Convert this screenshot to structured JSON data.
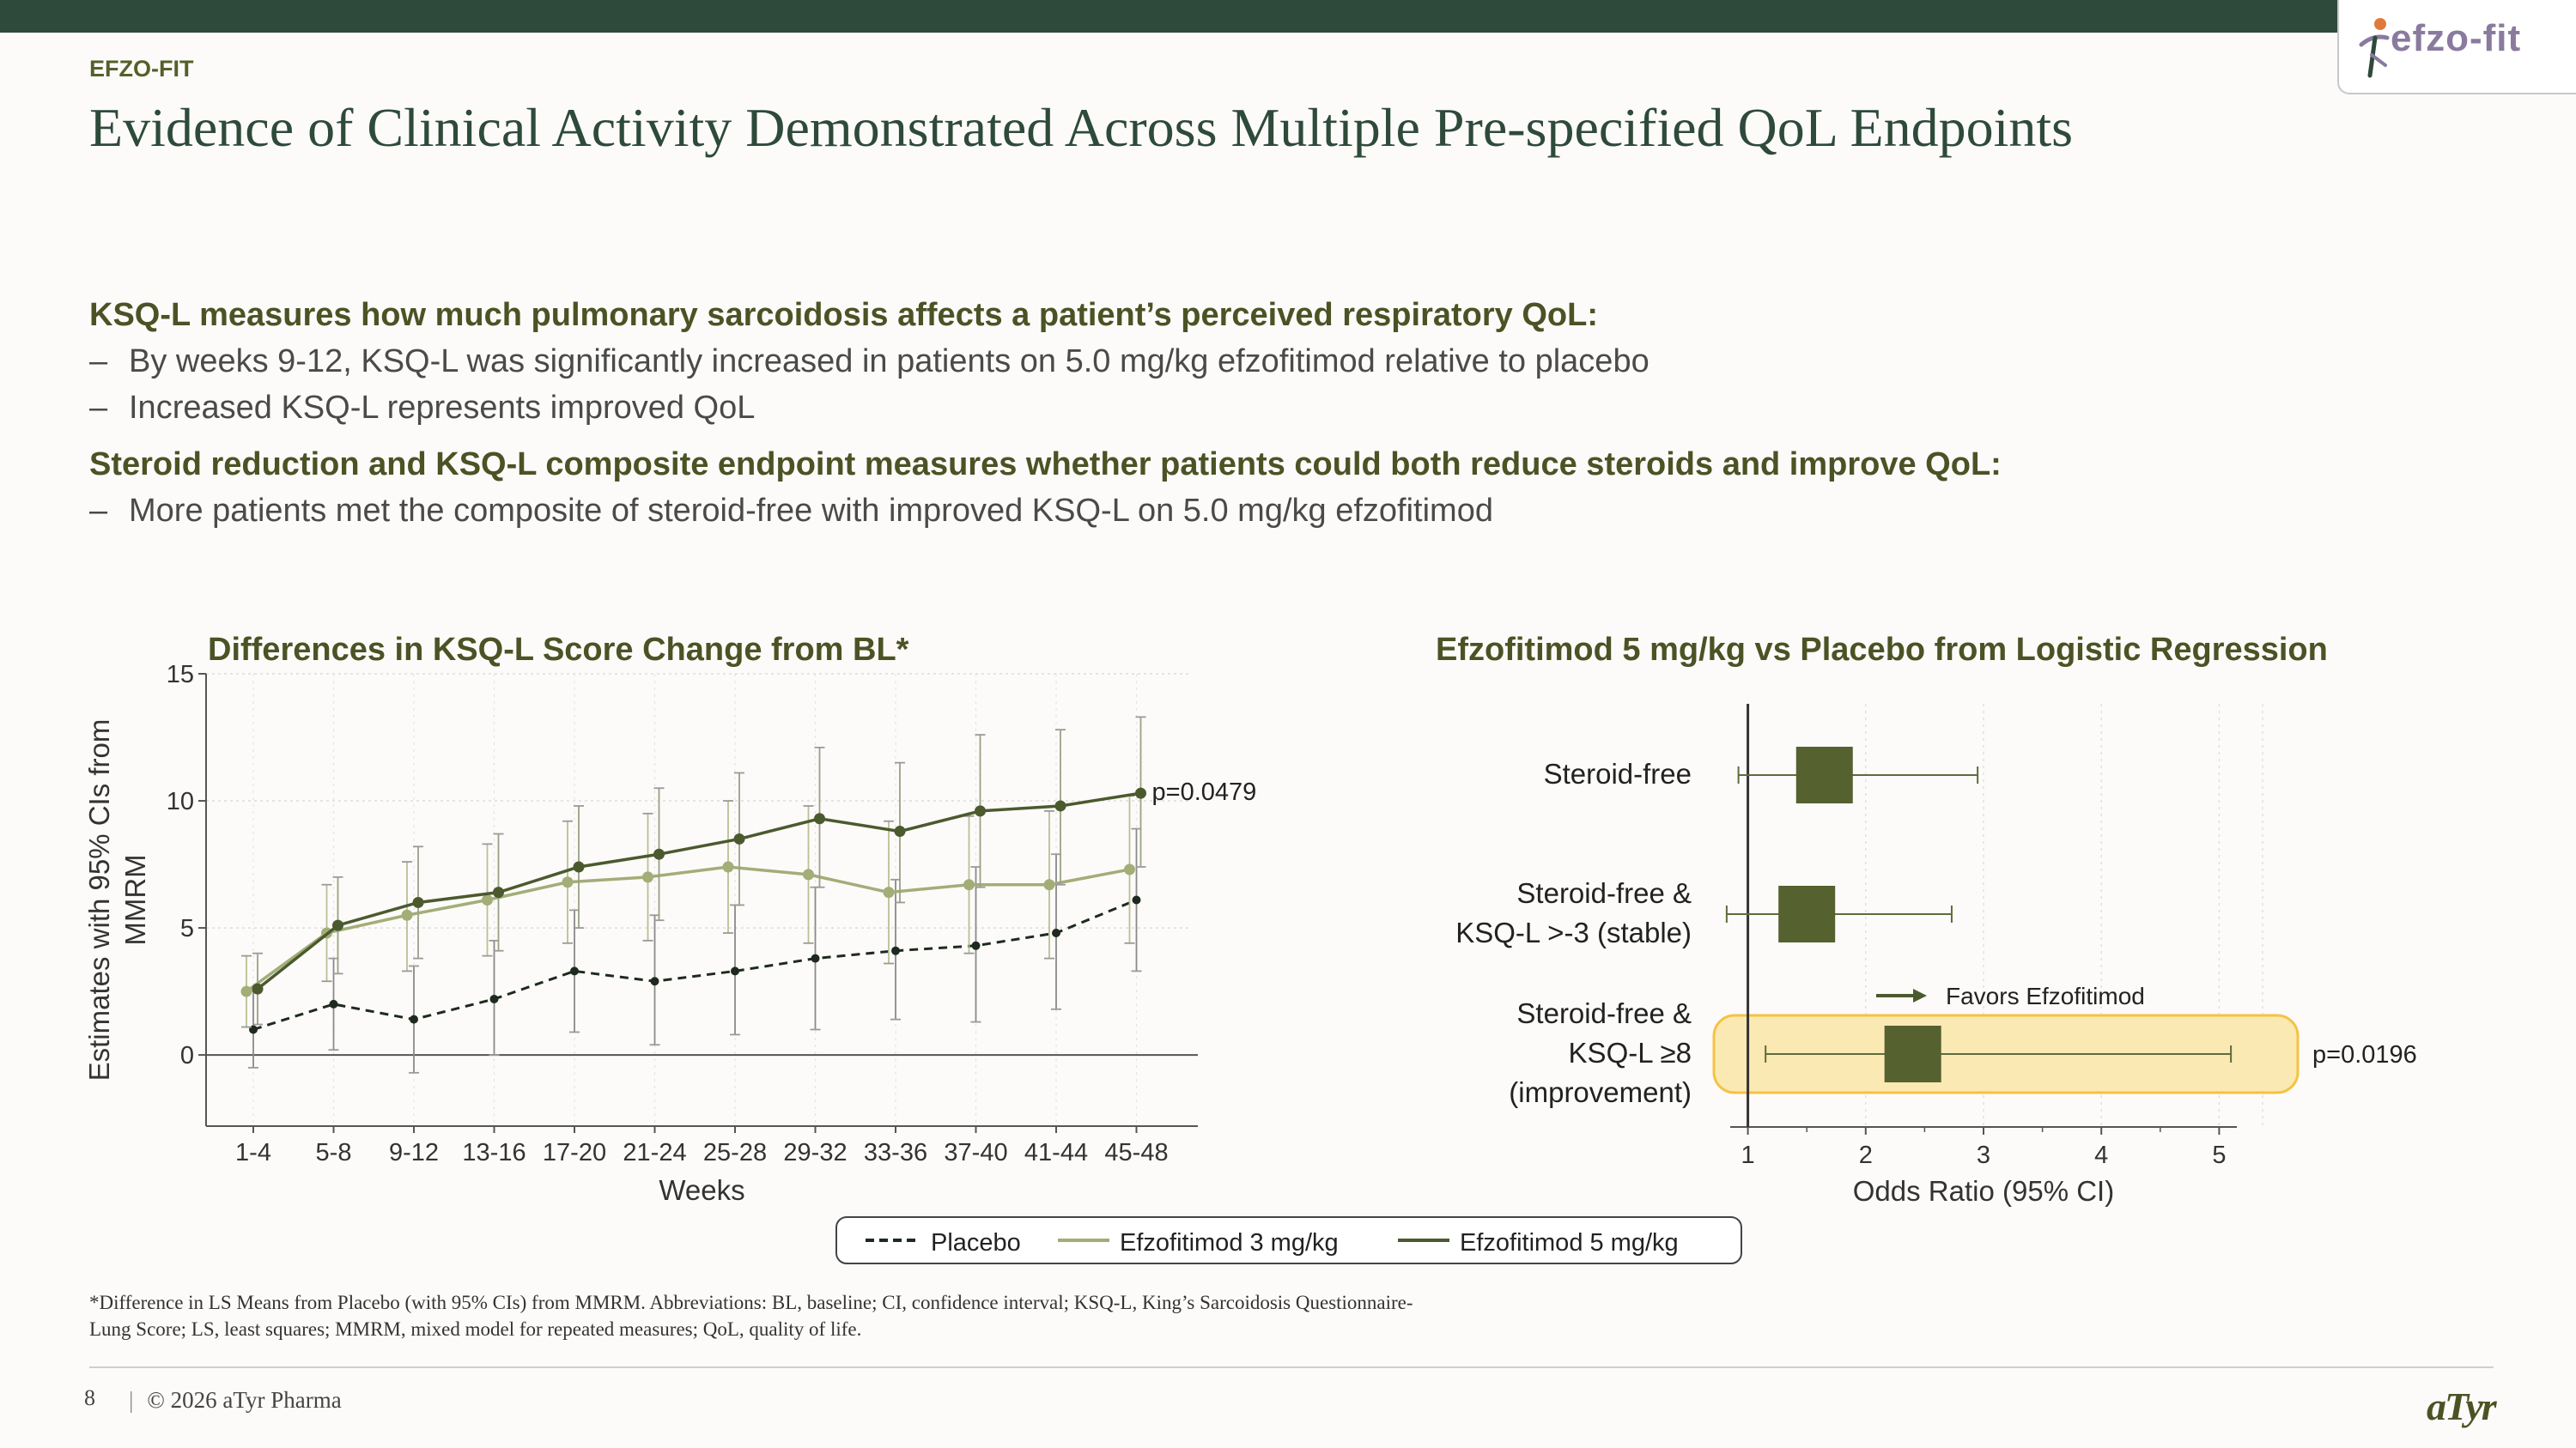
{
  "header": {
    "kicker": "EFZO-FIT",
    "title": "Evidence of Clinical Activity Demonstrated Across Multiple Pre-specified QoL Endpoints",
    "logo_text": "efzo-fit"
  },
  "body": {
    "heading1": "KSQ-L measures how much pulmonary sarcoidosis affects a patient’s perceived respiratory QoL:",
    "bullet1": "By weeks 9-12, KSQ-L was significantly increased in patients on 5.0 mg/kg efzofitimod relative to placebo",
    "bullet2": "Increased KSQ-L represents improved QoL",
    "heading2": "Steroid reduction and KSQ-L composite endpoint measures whether patients could both reduce steroids and improve QoL:",
    "bullet3": "More patients met the composite of steroid-free with improved KSQ-L on 5.0 mg/kg efzofitimod",
    "dash": "–"
  },
  "colors": {
    "placebo": "#1f2a1f",
    "efzo3": "#a3ad78",
    "efzo5": "#4b5a2e",
    "title_green": "#2e4a3a",
    "highlight": "#f5c242"
  },
  "chart_data": [
    {
      "type": "line",
      "title": "Differences in KSQ-L Score Change from BL*",
      "xlabel": "Weeks",
      "ylabel": "Estimates with 95% CIs from MMRM",
      "categories": [
        "1-4",
        "5-8",
        "9-12",
        "13-16",
        "17-20",
        "21-24",
        "25-28",
        "29-32",
        "33-36",
        "37-40",
        "41-44",
        "45-48"
      ],
      "yticks": [
        0,
        5,
        10,
        15
      ],
      "ylim": [
        -2.8,
        15
      ],
      "annotation": "p=0.0479",
      "series": [
        {
          "name": "Placebo",
          "values": [
            1.0,
            2.0,
            1.4,
            2.2,
            3.3,
            2.9,
            3.3,
            3.8,
            4.1,
            4.3,
            4.8,
            6.1
          ],
          "ci_low": [
            -0.5,
            0.2,
            -0.7,
            0.0,
            0.9,
            0.4,
            0.8,
            1.0,
            1.4,
            1.3,
            1.8,
            3.3
          ],
          "ci_high": [
            2.5,
            3.8,
            3.5,
            4.5,
            5.7,
            5.5,
            5.9,
            6.6,
            6.9,
            7.4,
            7.9,
            8.9
          ]
        },
        {
          "name": "Efzofitimod 3 mg/kg",
          "values": [
            2.5,
            4.8,
            5.5,
            6.1,
            6.8,
            7.0,
            7.4,
            7.1,
            6.4,
            6.7,
            6.7,
            7.3
          ],
          "ci_low": [
            1.1,
            2.9,
            3.3,
            3.9,
            4.4,
            4.5,
            4.8,
            4.4,
            3.6,
            4.0,
            3.8,
            4.4
          ],
          "ci_high": [
            3.9,
            6.7,
            7.6,
            8.3,
            9.2,
            9.5,
            10.0,
            9.8,
            9.2,
            9.4,
            9.6,
            10.2
          ]
        },
        {
          "name": "Efzofitimod 5 mg/kg",
          "values": [
            2.6,
            5.1,
            6.0,
            6.4,
            7.4,
            7.9,
            8.5,
            9.3,
            8.8,
            9.6,
            9.8,
            10.3
          ],
          "ci_low": [
            1.2,
            3.2,
            3.8,
            4.1,
            5.0,
            5.3,
            5.9,
            6.6,
            6.0,
            6.6,
            6.7,
            7.4
          ],
          "ci_high": [
            4.0,
            7.0,
            8.2,
            8.7,
            9.8,
            10.5,
            11.1,
            12.1,
            11.5,
            12.6,
            12.8,
            13.3
          ]
        }
      ]
    },
    {
      "type": "forest",
      "title": "Efzofitimod 5 mg/kg vs Placebo from Logistic Regression",
      "xlabel": "Odds Ratio (95% CI)",
      "xticks": [
        1,
        2,
        3,
        4,
        5
      ],
      "xlim": [
        0.85,
        5.15
      ],
      "annotation_arrow": "Favors Efzofitimod",
      "rows": [
        {
          "label": [
            "Steroid-free"
          ],
          "or": 1.65,
          "ci_low": 0.92,
          "ci_high": 2.95,
          "p": ""
        },
        {
          "label": [
            "Steroid-free &",
            "KSQ-L >-3 (stable)"
          ],
          "or": 1.5,
          "ci_low": 0.82,
          "ci_high": 2.73,
          "p": ""
        },
        {
          "label": [
            "Steroid-free &",
            "KSQ-L ≥8",
            "(improvement)"
          ],
          "or": 2.4,
          "ci_low": 1.15,
          "ci_high": 5.1,
          "p": "p=0.0196"
        }
      ]
    }
  ],
  "legend": {
    "items": [
      "Placebo",
      "Efzofitimod 3 mg/kg",
      "Efzofitimod 5 mg/kg"
    ]
  },
  "footnote": "*Difference in LS Means from Placebo (with 95% CIs) from MMRM. Abbreviations: BL, baseline; CI, confidence interval; KSQ-L, King’s Sarcoidosis Questionnaire-Lung Score; LS, least squares; MMRM, mixed model for repeated measures; QoL, quality of life.",
  "footer": {
    "page": "8",
    "separator": "|",
    "copyright": "© 2026 aTyr Pharma",
    "brand": "aTyr"
  }
}
